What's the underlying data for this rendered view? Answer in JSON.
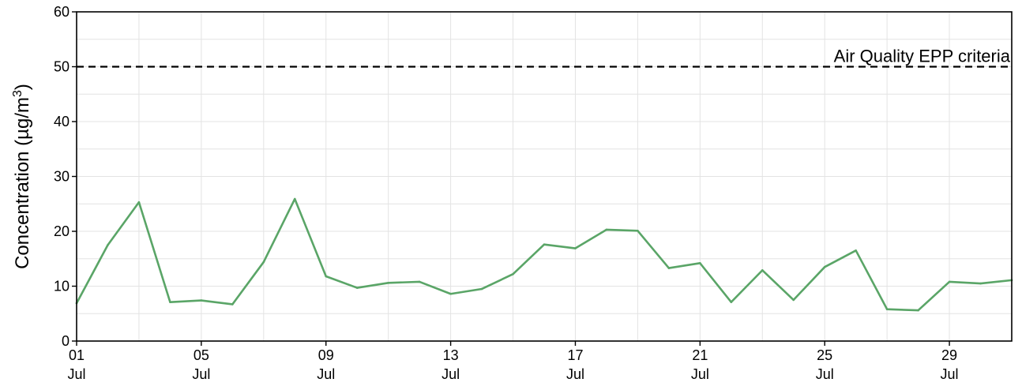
{
  "chart_data": {
    "type": "line",
    "ylabel": "Concentration (µg/m³)",
    "ylabel_parts": {
      "main": "Concentration (µg/m",
      "superscript": "3",
      "close": ")"
    },
    "ylim": [
      0,
      60
    ],
    "xlim": [
      "2023-07-01",
      "2023-07-31"
    ],
    "grid": true,
    "y_ticks": [
      "0",
      "10",
      "20",
      "30",
      "40",
      "50",
      "60"
    ],
    "x_ticks": [
      {
        "date": "2023-07-01",
        "day": "01",
        "month": "Jul"
      },
      {
        "date": "2023-07-05",
        "day": "05",
        "month": "Jul"
      },
      {
        "date": "2023-07-09",
        "day": "09",
        "month": "Jul"
      },
      {
        "date": "2023-07-13",
        "day": "13",
        "month": "Jul"
      },
      {
        "date": "2023-07-17",
        "day": "17",
        "month": "Jul"
      },
      {
        "date": "2023-07-21",
        "day": "21",
        "month": "Jul"
      },
      {
        "date": "2023-07-25",
        "day": "25",
        "month": "Jul"
      },
      {
        "date": "2023-07-29",
        "day": "29",
        "month": "Jul"
      }
    ],
    "reference_line": {
      "value": 50,
      "label": "Air Quality EPP criteria",
      "style": "dashed",
      "color": "#000000"
    },
    "series": [
      {
        "color": "#5aa567",
        "x": [
          "2023-07-01",
          "2023-07-02",
          "2023-07-03",
          "2023-07-04",
          "2023-07-05",
          "2023-07-06",
          "2023-07-07",
          "2023-07-08",
          "2023-07-09",
          "2023-07-10",
          "2023-07-11",
          "2023-07-12",
          "2023-07-13",
          "2023-07-14",
          "2023-07-15",
          "2023-07-16",
          "2023-07-17",
          "2023-07-18",
          "2023-07-19",
          "2023-07-20",
          "2023-07-21",
          "2023-07-22",
          "2023-07-23",
          "2023-07-24",
          "2023-07-25",
          "2023-07-26",
          "2023-07-27",
          "2023-07-28",
          "2023-07-29",
          "2023-07-30",
          "2023-07-31"
        ],
        "values": [
          6.9,
          17.5,
          25.3,
          7.1,
          7.4,
          6.7,
          14.4,
          25.9,
          11.8,
          9.7,
          10.6,
          10.8,
          8.6,
          9.5,
          12.2,
          17.6,
          16.9,
          20.3,
          20.1,
          13.3,
          14.2,
          7.1,
          12.9,
          7.5,
          13.5,
          16.5,
          5.8,
          5.6,
          10.8,
          10.5,
          11.1
        ]
      }
    ]
  }
}
